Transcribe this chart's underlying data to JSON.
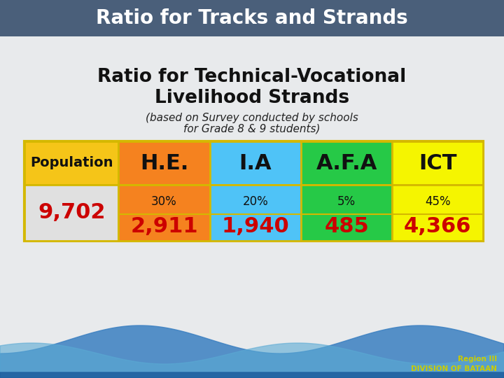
{
  "title_bar_text": "Ratio for Tracks and Strands",
  "title_bar_color": "#4a5f7a",
  "main_title_line1": "Ratio for Technical-Vocational",
  "main_title_line2": "Livelihood Strands",
  "subtitle_line1": "(based on Survey conducted by schools",
  "subtitle_line2": "for Grade 8 & 9 students)",
  "bg_color": "#e8eaec",
  "table": {
    "col_headers": [
      "Population",
      "H.E.",
      "I.A",
      "A.F.A",
      "ICT"
    ],
    "col_header_colors": [
      "#f5c518",
      "#f5821f",
      "#4fc3f7",
      "#26c947",
      "#f5f500"
    ],
    "row2_bg": [
      "#e0e0e0",
      "#f5821f",
      "#4fc3f7",
      "#26c947",
      "#f5f500"
    ],
    "row2_percent": [
      "",
      "30%",
      "20%",
      "5%",
      "45%"
    ],
    "row2_value": [
      "9,702",
      "2,911",
      "1,940",
      "485",
      "4,366"
    ],
    "population_text_color": "#cc0000",
    "value_color": "#cc0000",
    "border_color": "#d4b800",
    "percent_color": "#111111"
  },
  "footer_text": "Region III\nDIVISION OF BATAAN",
  "footer_color": "#cccc00"
}
